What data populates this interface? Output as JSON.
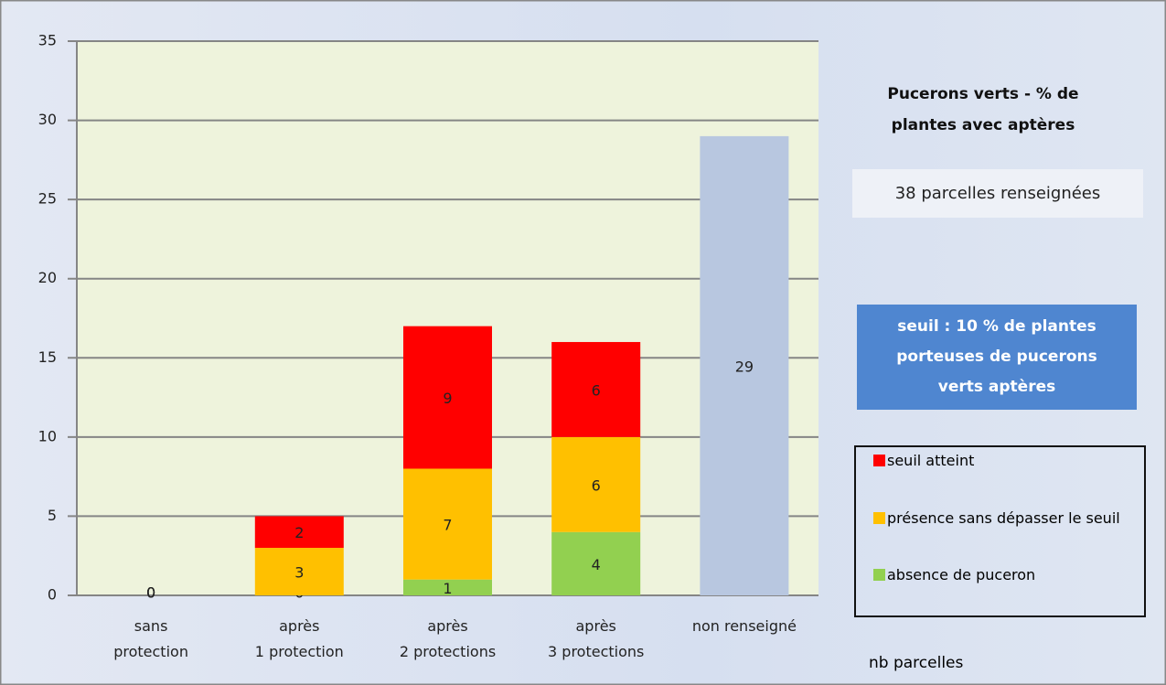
{
  "chart_data": {
    "type": "stacked_bar",
    "title": "Pucerons verts - % de plantes avec aptères",
    "note": "38 parcelles renseignées",
    "threshold_note": "seuil : 10 % de plantes porteuses de pucerons verts aptères",
    "x_label": "nb parcelles",
    "categories": [
      "sans\nprotection",
      "après\n1 protection",
      "après\n2 protections",
      "après\n3 protections",
      "non renseigné"
    ],
    "series": [
      {
        "name": "absence de puceron",
        "color": "#92d050",
        "values": [
          0,
          0,
          1,
          4,
          null
        ]
      },
      {
        "name": "présence sans dépasser le seuil",
        "color": "#ffc000",
        "values": [
          0,
          3,
          7,
          6,
          null
        ]
      },
      {
        "name": "seuil atteint",
        "color": "#ff0000",
        "values": [
          0,
          2,
          9,
          6,
          null
        ]
      },
      {
        "color": "#b8c7e0",
        "values": [
          null,
          null,
          null,
          null,
          29
        ]
      }
    ],
    "ylim": [
      0,
      35
    ],
    "yticks": [
      0,
      5,
      10,
      15,
      20,
      25,
      30,
      35
    ],
    "grid": true
  }
}
